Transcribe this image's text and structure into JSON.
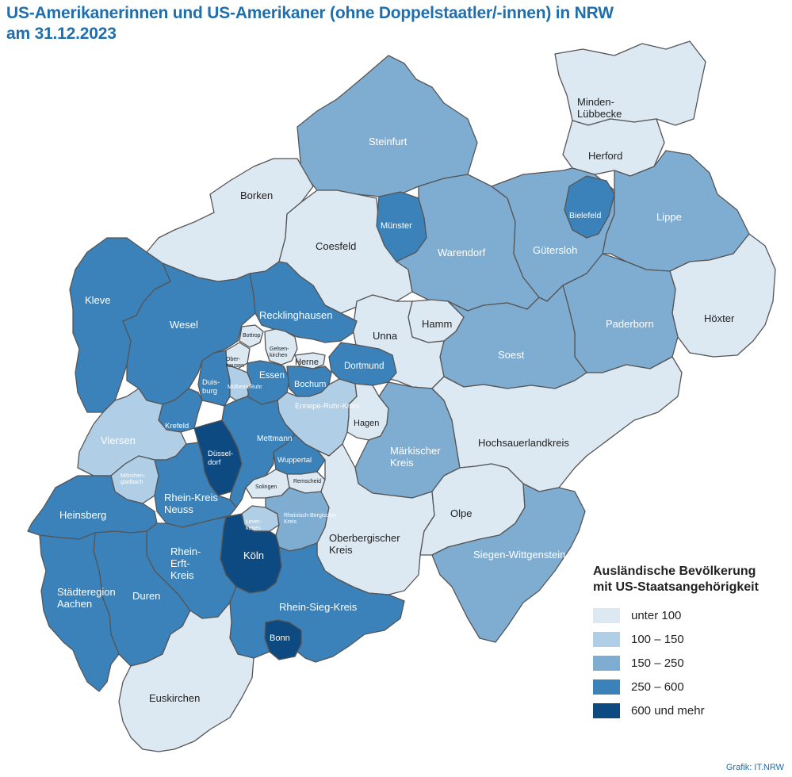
{
  "title_line1": "US-Amerikanerinnen und US-Amerikaner (ohne Doppelstaatler/-innen) in NRW",
  "title_line2": "am 31.12.2023",
  "legend": {
    "title_line1": "Ausländische Bevölkerung",
    "title_line2": "mit US-Staatsangehörigkeit",
    "classes": [
      {
        "label": "unter 100",
        "color": "#dce8f2"
      },
      {
        "label": "100 – 150",
        "color": "#b0cee5"
      },
      {
        "label": "150 – 250",
        "color": "#7fadd1"
      },
      {
        "label": "250 – 600",
        "color": "#3a82b9"
      },
      {
        "label": "600 und mehr",
        "color": "#0d4a82"
      }
    ]
  },
  "regions": {
    "minden_luebbecke": {
      "name": "Minden-Lübbecke",
      "class": 0
    },
    "herford": {
      "name": "Herford",
      "class": 0
    },
    "steinfurt": {
      "name": "Steinfurt",
      "class": 2
    },
    "borken": {
      "name": "Borken",
      "class": 0
    },
    "coesfeld": {
      "name": "Coesfeld",
      "class": 0
    },
    "muenster": {
      "name": "Münster",
      "class": 3
    },
    "warendorf": {
      "name": "Warendorf",
      "class": 2
    },
    "guetersloh": {
      "name": "Gütersloh",
      "class": 2
    },
    "bielefeld": {
      "name": "Bielefeld",
      "class": 3
    },
    "lippe": {
      "name": "Lippe",
      "class": 2
    },
    "hoexter": {
      "name": "Höxter",
      "class": 0
    },
    "paderborn": {
      "name": "Paderborn",
      "class": 2
    },
    "soest": {
      "name": "Soest",
      "class": 2
    },
    "hamm": {
      "name": "Hamm",
      "class": 0
    },
    "unna": {
      "name": "Unna",
      "class": 0
    },
    "kleve": {
      "name": "Kleve",
      "class": 3
    },
    "wesel": {
      "name": "Wesel",
      "class": 3
    },
    "recklinghausen": {
      "name": "Recklinghausen",
      "class": 3
    },
    "bottrop": {
      "name": "Bottrop",
      "class": 0
    },
    "gelsenkirchen": {
      "name": "Gelsen-kirchen",
      "class": 0
    },
    "oberhausen": {
      "name": "Ober-hausen",
      "class": 0
    },
    "herne": {
      "name": "Herne",
      "class": 0
    },
    "dortmund": {
      "name": "Dortmund",
      "class": 3
    },
    "duisburg": {
      "name": "Duis-burg",
      "class": 3
    },
    "muelheim": {
      "name": "Mülheim/Ruhr",
      "class": 1
    },
    "essen": {
      "name": "Essen",
      "class": 3
    },
    "bochum": {
      "name": "Bochum",
      "class": 3
    },
    "ennepe_ruhr": {
      "name": "Ennepe-Ruhr-Kreis",
      "class": 1
    },
    "hagen": {
      "name": "Hagen",
      "class": 0
    },
    "maerkischer_kreis": {
      "name": "Märkischer Kreis",
      "class": 2
    },
    "hochsauerlandkreis": {
      "name": "Hochsauerlandkreis",
      "class": 0
    },
    "krefeld": {
      "name": "Krefeld",
      "class": 3
    },
    "viersen": {
      "name": "Viersen",
      "class": 1
    },
    "duesseldorf": {
      "name": "Düssel-dorf",
      "class": 4
    },
    "mettmann": {
      "name": "Mettmann",
      "class": 3
    },
    "wuppertal": {
      "name": "Wuppertal",
      "class": 3
    },
    "moenchengladbach": {
      "name": "Mönchen-gladbach",
      "class": 1
    },
    "solingen": {
      "name": "Solingen",
      "class": 0
    },
    "remscheid": {
      "name": "Remscheid",
      "class": 0
    },
    "rhein_kreis_neuss": {
      "name": "Rhein-Kreis Neuss",
      "class": 3
    },
    "heinsberg": {
      "name": "Heinsberg",
      "class": 3
    },
    "leverkusen": {
      "name": "Lever-kusen",
      "class": 1
    },
    "rheinisch_bergischer_kreis": {
      "name": "Rheinisch-Bergischer Kreis",
      "class": 2
    },
    "oberbergischer_kreis": {
      "name": "Oberbergischer Kreis",
      "class": 0
    },
    "olpe": {
      "name": "Olpe",
      "class": 0
    },
    "siegen_wittgenstein": {
      "name": "Siegen-Wittgenstein",
      "class": 2
    },
    "koeln": {
      "name": "Köln",
      "class": 4
    },
    "rhein_erft_kreis": {
      "name": "Rhein-Erft-Kreis",
      "class": 3
    },
    "dueren": {
      "name": "Duren",
      "class": 3
    },
    "staedteregion_aachen": {
      "name": "Städteregion Aachen",
      "class": 3
    },
    "rhein_sieg_kreis": {
      "name": "Rhein-Sieg-Kreis",
      "class": 3
    },
    "bonn": {
      "name": "Bonn",
      "class": 4
    },
    "euskirchen": {
      "name": "Euskirchen",
      "class": 0
    }
  },
  "credit": "Grafik: IT.NRW"
}
